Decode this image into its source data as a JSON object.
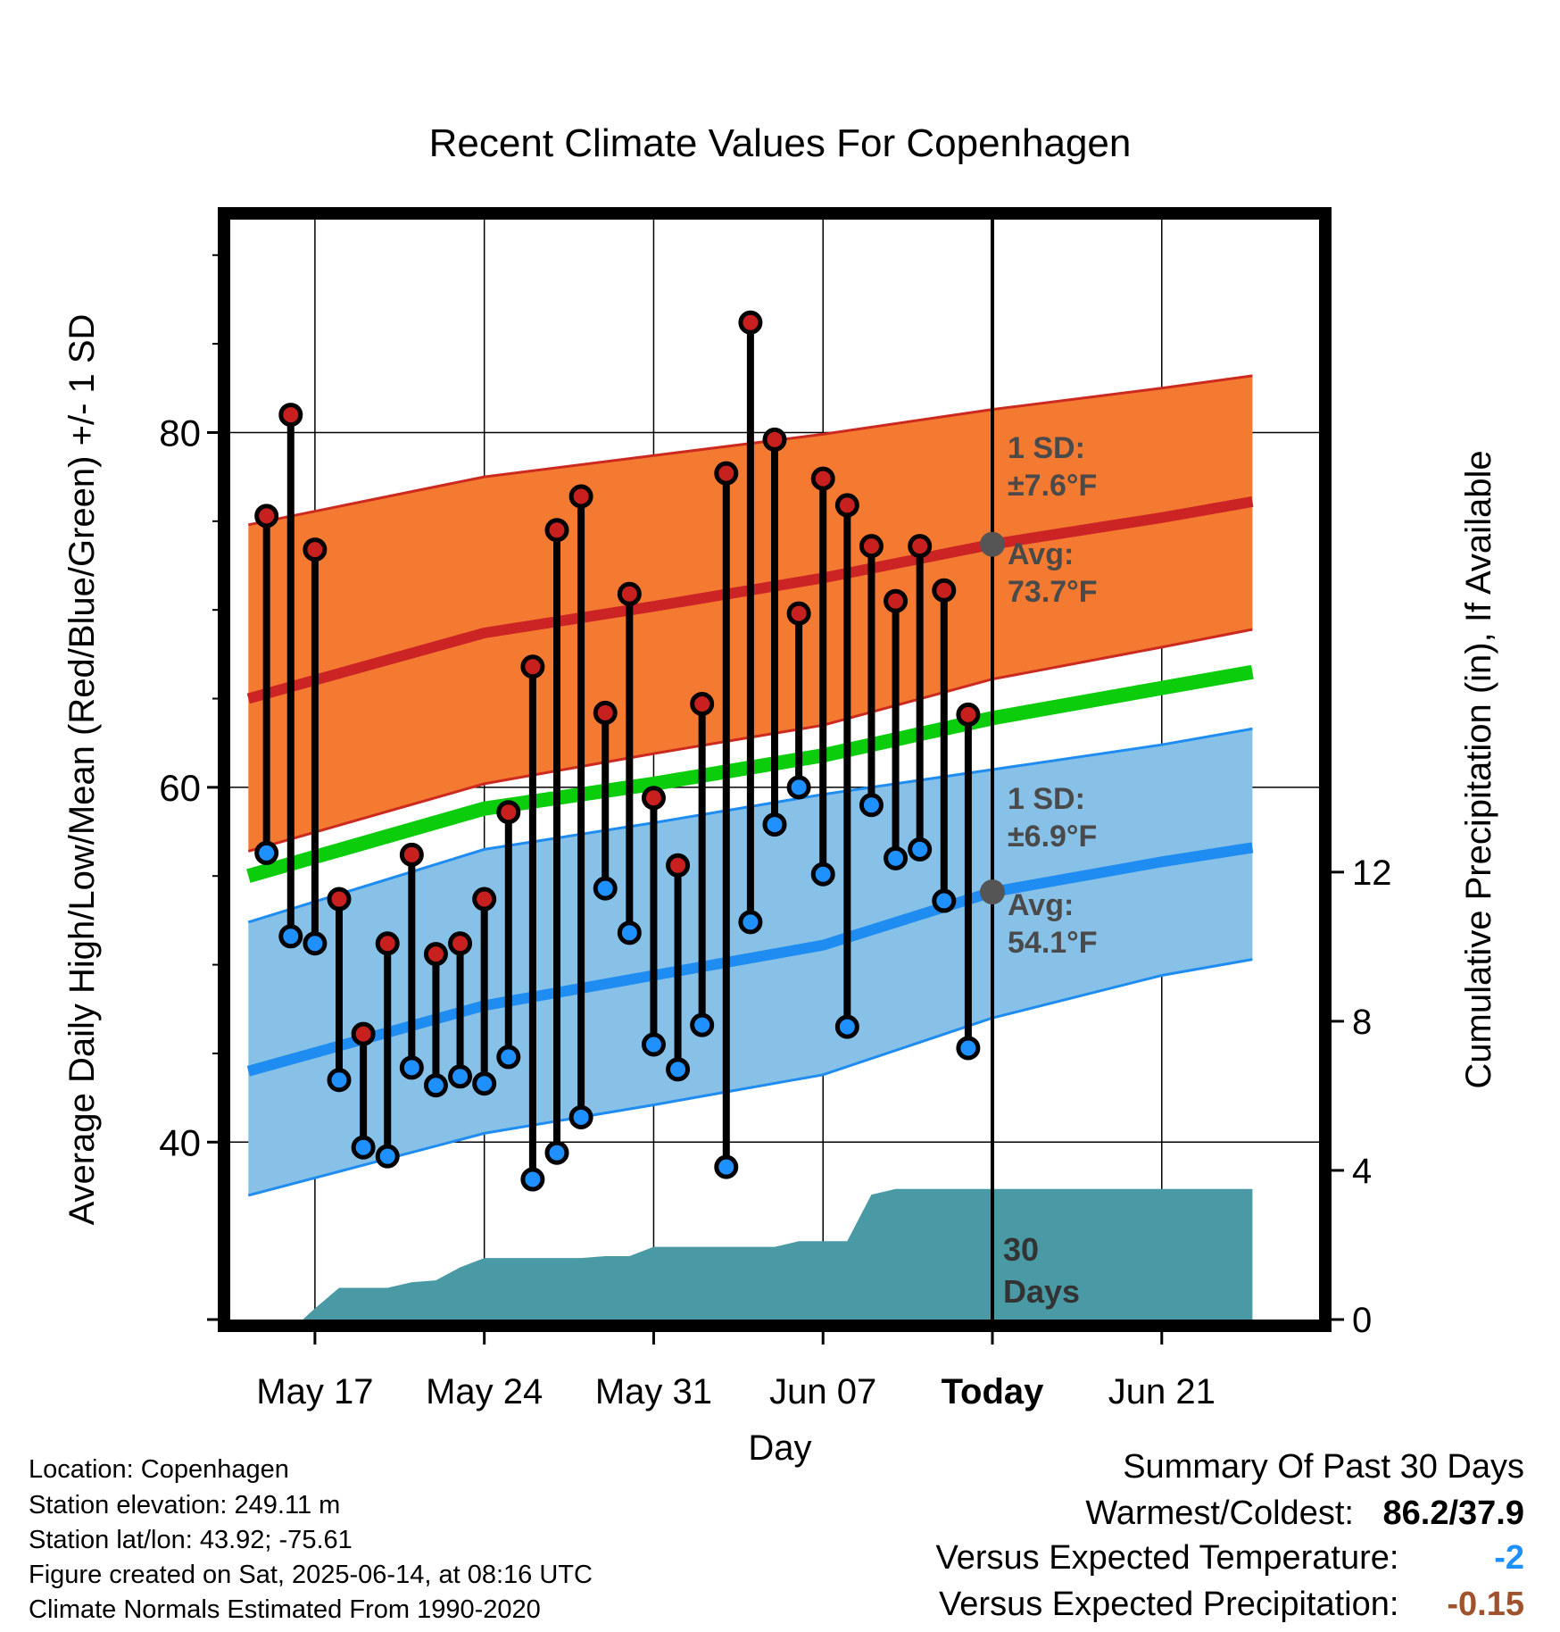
{
  "chart_data": {
    "type": "line",
    "title": "Recent Climate Values For Copenhagen",
    "xlabel": "Day",
    "ylabel": "Average Daily High/Low/Mean (Red/Blue/Green) +/- 1 SD",
    "y2label": "Cumulative Precipitation (in), If Available",
    "ylim": [
      30,
      92
    ],
    "y2lim": [
      0,
      29.5
    ],
    "xlim": [
      -3.5,
      41.5
    ],
    "yticks": [
      {
        "value": 40,
        "label": "40"
      },
      {
        "value": 60,
        "label": "60"
      },
      {
        "value": 80,
        "label": "80"
      }
    ],
    "y2ticks": [
      {
        "value": 0,
        "label": "0"
      },
      {
        "value": 4,
        "label": "4"
      },
      {
        "value": 8,
        "label": "8"
      },
      {
        "value": 12,
        "label": "12"
      }
    ],
    "xticks": [
      {
        "x": 0,
        "label": "May 17",
        "bold": false
      },
      {
        "x": 7,
        "label": "May 24",
        "bold": false
      },
      {
        "x": 14,
        "label": "May 31",
        "bold": false
      },
      {
        "x": 21,
        "label": "Jun 07",
        "bold": false
      },
      {
        "x": 28,
        "label": "Today",
        "bold": true
      },
      {
        "x": 35,
        "label": "Jun 21",
        "bold": false
      }
    ],
    "grid": true,
    "x_note": "x = days from May 17",
    "today_x": 28,
    "today_label_lines": [
      "30",
      "Days"
    ],
    "normals": {
      "x": [
        -2.75,
        7,
        14,
        21,
        28,
        35,
        38.75
      ],
      "high_avg": [
        65.0,
        68.7,
        70.2,
        71.8,
        73.7,
        75.2,
        76.1
      ],
      "high_upper": [
        74.8,
        77.5,
        78.7,
        79.9,
        81.3,
        82.5,
        83.2
      ],
      "high_lower": [
        56.4,
        60.2,
        61.9,
        63.5,
        66.1,
        67.9,
        68.9
      ],
      "mean": [
        55.0,
        58.8,
        60.2,
        61.8,
        63.9,
        65.6,
        66.5
      ],
      "low_avg": [
        44.0,
        47.7,
        49.4,
        51.1,
        54.1,
        55.8,
        56.6
      ],
      "low_upper": [
        52.4,
        56.5,
        58.0,
        59.6,
        61.0,
        62.4,
        63.3
      ],
      "low_lower": [
        37.0,
        40.5,
        42.1,
        43.8,
        47.0,
        49.4,
        50.3
      ]
    },
    "annotations": {
      "high": {
        "sd": "1 SD:",
        "sd_value": "±7.6°F",
        "avg": "Avg:",
        "avg_value": "73.7°F"
      },
      "low": {
        "sd": "1 SD:",
        "sd_value": "±6.9°F",
        "avg": "Avg:",
        "avg_value": "54.1°F"
      }
    },
    "series": [
      {
        "name": "High",
        "color": "#c8201e",
        "x": [
          -2,
          -1,
          0,
          1,
          2,
          3,
          4,
          5,
          6,
          7,
          8,
          9,
          10,
          11,
          12,
          13,
          14,
          15,
          16,
          17,
          18,
          19,
          20,
          21,
          22,
          23,
          24,
          25,
          26,
          27
        ],
        "values": [
          75.3,
          81.0,
          73.4,
          53.7,
          46.1,
          51.2,
          56.2,
          50.6,
          51.2,
          53.7,
          58.6,
          66.8,
          74.5,
          76.4,
          64.2,
          70.9,
          59.4,
          55.6,
          64.7,
          77.7,
          86.2,
          79.6,
          69.8,
          77.4,
          75.9,
          73.6,
          70.5,
          73.6,
          71.1,
          64.1
        ]
      },
      {
        "name": "Low",
        "color": "#1e90ff",
        "x": [
          -2,
          -1,
          0,
          1,
          2,
          3,
          4,
          5,
          6,
          7,
          8,
          9,
          10,
          11,
          12,
          13,
          14,
          15,
          16,
          17,
          18,
          19,
          20,
          21,
          22,
          23,
          24,
          25,
          26,
          27
        ],
        "values": [
          56.3,
          51.6,
          51.2,
          43.5,
          39.7,
          39.2,
          44.2,
          43.2,
          43.7,
          43.3,
          44.8,
          37.9,
          39.4,
          41.4,
          54.3,
          51.8,
          45.5,
          44.1,
          46.6,
          38.6,
          52.4,
          57.9,
          60.0,
          55.1,
          46.5,
          59.0,
          56.0,
          56.5,
          53.6,
          45.3
        ]
      },
      {
        "name": "Cumulative Precipitation",
        "color": "#4a9aa5",
        "x": [
          -0.5,
          0,
          1,
          2,
          3,
          4,
          5,
          6,
          7,
          8,
          9,
          10,
          11,
          12,
          13,
          14,
          15,
          16,
          17,
          18,
          19,
          20,
          21,
          22,
          23,
          24,
          25,
          26,
          27,
          28,
          35,
          38.75
        ],
        "values": [
          0,
          0.3,
          0.85,
          0.85,
          0.85,
          1.0,
          1.05,
          1.4,
          1.65,
          1.65,
          1.65,
          1.65,
          1.65,
          1.7,
          1.7,
          1.95,
          1.95,
          1.95,
          1.95,
          1.95,
          1.95,
          2.1,
          2.1,
          2.1,
          3.35,
          3.5,
          3.5,
          3.5,
          3.5,
          3.5,
          3.5,
          3.5
        ]
      }
    ]
  },
  "info": {
    "location": "Location: Copenhagen",
    "elevation": "Station elevation: 249.11 m",
    "latlon": "Station lat/lon: 43.92; -75.61",
    "created": "Figure created on Sat, 2025-06-14, at 08:16 UTC",
    "normals": "Climate Normals Estimated From 1990-2020"
  },
  "summary": {
    "title": "Summary Of Past 30 Days",
    "warm_cold_label": "Warmest/Coldest:",
    "warm_cold_value": "86.2/37.9",
    "temp_label": "Versus Expected Temperature:",
    "temp_value": "-2",
    "temp_color": "#1e90ff",
    "precip_label": "Versus Expected Precipitation:",
    "precip_value": "-0.15",
    "precip_color": "#a0522d"
  }
}
